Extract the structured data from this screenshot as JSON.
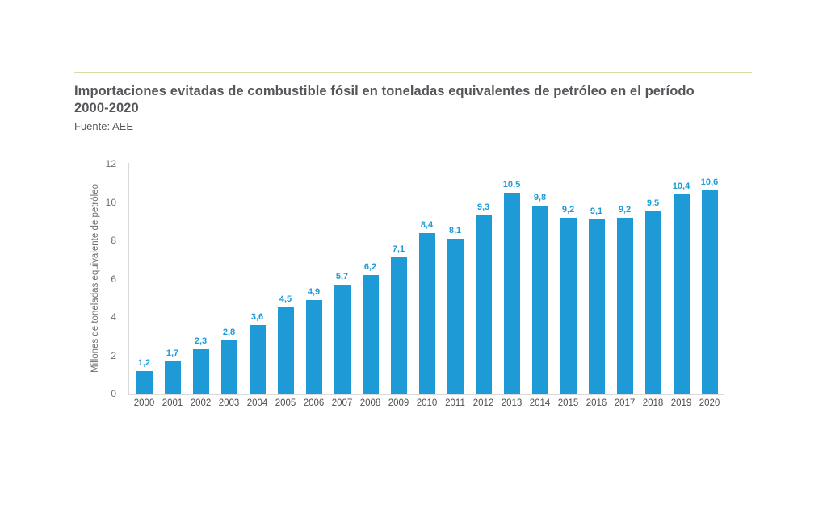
{
  "header": {
    "title_line1": "Importaciones evitadas de combustible fósil en toneladas equivalentes de petróleo en el período",
    "title_line2": "2000-2020",
    "source": "Fuente: AEE"
  },
  "colors": {
    "bar_blue": "#1e9bd7",
    "value_label_blue": "#1e9bd7",
    "accent_rule_olive": "#d9dba8",
    "axis_line_gray": "#d7d8d9",
    "tick_text_gray": "#6d6e71",
    "title_text_gray": "#55565a"
  },
  "chart_data": {
    "type": "bar",
    "title": "Importaciones evitadas de combustible fósil en toneladas equivalentes de petróleo en el período 2000-2020",
    "source": "Fuente: AEE",
    "xlabel": "",
    "ylabel": "Millones de toneladas equivalente de petróleo",
    "ylim": [
      0,
      12
    ],
    "y_ticks": [
      0,
      2,
      4,
      6,
      8,
      10,
      12
    ],
    "grid": false,
    "legend": false,
    "categories": [
      "2000",
      "2001",
      "2002",
      "2003",
      "2004",
      "2005",
      "2006",
      "2007",
      "2008",
      "2009",
      "2010",
      "2011",
      "2012",
      "2013",
      "2014",
      "2015",
      "2016",
      "2017",
      "2018",
      "2019",
      "2020"
    ],
    "values": [
      1.2,
      1.7,
      2.3,
      2.8,
      3.6,
      4.5,
      4.9,
      5.7,
      6.2,
      7.1,
      8.4,
      8.1,
      9.3,
      10.5,
      9.8,
      9.2,
      9.1,
      9.2,
      9.5,
      10.4,
      10.6
    ],
    "value_labels": [
      "1,2",
      "1,7",
      "2,3",
      "2,8",
      "3,6",
      "4,5",
      "4,9",
      "5,7",
      "6,2",
      "7,1",
      "8,4",
      "8,1",
      "9,3",
      "10,5",
      "9,8",
      "9,2",
      "9,1",
      "9,2",
      "9,5",
      "10,4",
      "10,6"
    ]
  }
}
